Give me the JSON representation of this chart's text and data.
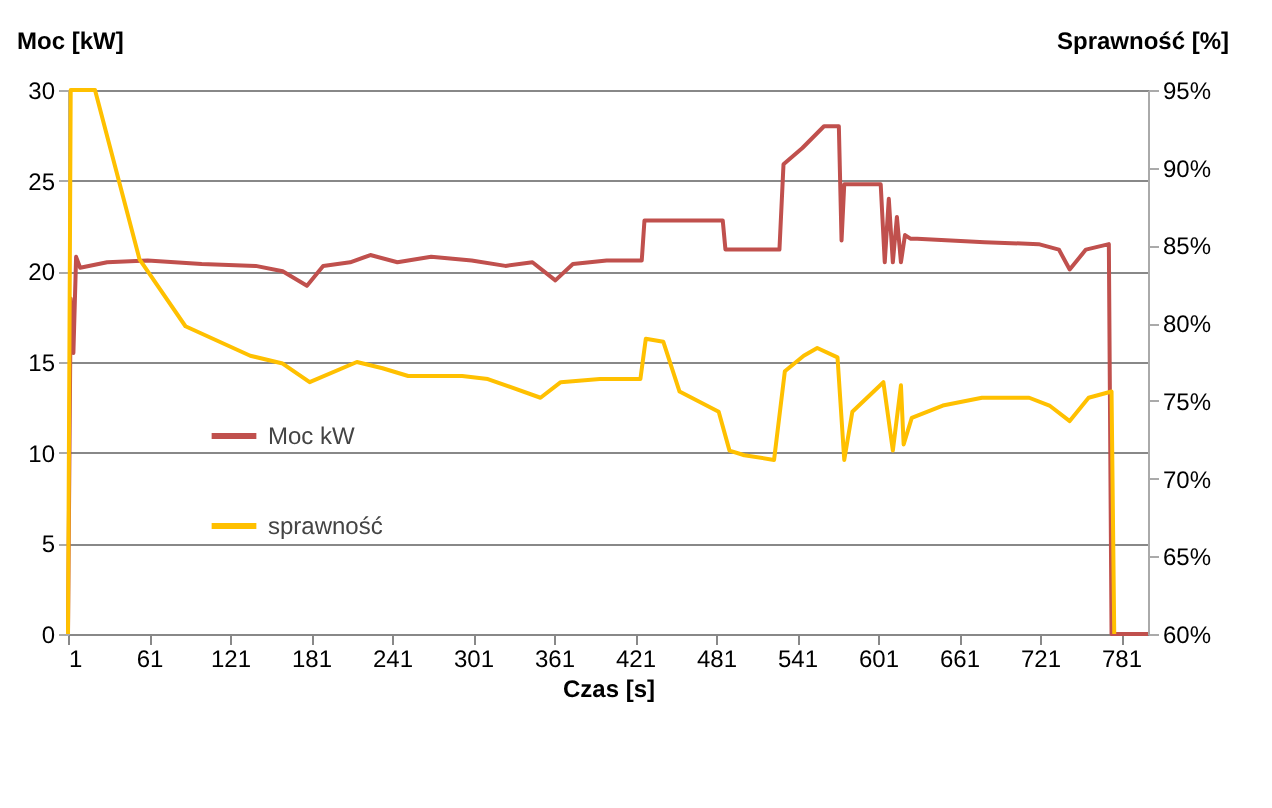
{
  "chart_data": {
    "type": "line",
    "xlabel": "Czas [s]",
    "ylabel": "Moc [kW]",
    "y2label": "Sprawność [%]",
    "xlim": [
      1,
      801
    ],
    "xticks": [
      1,
      61,
      121,
      181,
      241,
      301,
      361,
      421,
      481,
      541,
      601,
      661,
      721,
      781
    ],
    "ylim": [
      0,
      30
    ],
    "yticks": [
      0,
      5,
      10,
      15,
      20,
      25,
      30
    ],
    "y2lim": [
      60,
      95
    ],
    "y2ticks": [
      {
        "value": 60,
        "label": "60%"
      },
      {
        "value": 65,
        "label": "65%"
      },
      {
        "value": 70,
        "label": "70%"
      },
      {
        "value": 75,
        "label": "75%"
      },
      {
        "value": 80,
        "label": "80%"
      },
      {
        "value": 85,
        "label": "85%"
      },
      {
        "value": 90,
        "label": "90%"
      },
      {
        "value": 95,
        "label": "95%"
      }
    ],
    "grid": "y",
    "legend": "bottom left",
    "line_style": "solid",
    "marker": "none",
    "series": [
      {
        "name": "Moc kW",
        "color": "#c0504d",
        "x": [
          1,
          3,
          5,
          7,
          10,
          30,
          60,
          100,
          140,
          160,
          178,
          190,
          210,
          225,
          245,
          270,
          300,
          325,
          345,
          362,
          375,
          400,
          426,
          428,
          486,
          488,
          528,
          531,
          545,
          561,
          572,
          574,
          576,
          578,
          603,
          606,
          609,
          612,
          615,
          618,
          621,
          625,
          630,
          680,
          720,
          735,
          743,
          755,
          772,
          774,
          801
        ],
        "values": [
          0,
          18.5,
          15.5,
          20.8,
          20.2,
          20.5,
          20.6,
          20.4,
          20.3,
          20.0,
          19.2,
          20.3,
          20.5,
          20.9,
          20.5,
          20.8,
          20.6,
          20.3,
          20.5,
          19.5,
          20.4,
          20.6,
          20.6,
          22.8,
          22.8,
          21.2,
          21.2,
          25.9,
          26.8,
          28.0,
          28.0,
          21.7,
          24.8,
          24.8,
          24.8,
          20.5,
          24.0,
          20.5,
          23.0,
          20.5,
          22.0,
          21.8,
          21.8,
          21.6,
          21.5,
          21.2,
          20.1,
          21.2,
          21.5,
          0,
          0
        ]
      },
      {
        "name": "sprawność",
        "color": "#ffc000",
        "axis": "y2",
        "x": [
          1,
          3,
          21,
          54,
          88,
          136,
          160,
          180,
          215,
          234,
          253,
          293,
          312,
          351,
          366,
          395,
          425,
          429,
          442,
          454,
          483,
          491,
          502,
          524,
          532,
          546,
          556,
          571,
          576,
          582,
          605,
          612,
          618,
          620,
          626,
          649,
          678,
          713,
          728,
          743,
          757,
          774,
          776
        ],
        "values": [
          60,
          95,
          95,
          84.1,
          79.8,
          77.9,
          77.4,
          76.2,
          77.5,
          77.1,
          76.6,
          76.6,
          76.4,
          75.2,
          76.2,
          76.4,
          76.4,
          79.0,
          78.8,
          75.6,
          74.3,
          71.8,
          71.5,
          71.2,
          76.9,
          77.9,
          78.4,
          77.8,
          71.2,
          74.3,
          76.2,
          71.8,
          76.0,
          72.2,
          73.9,
          74.7,
          75.2,
          75.2,
          74.7,
          73.7,
          75.2,
          75.6,
          60
        ]
      }
    ]
  }
}
